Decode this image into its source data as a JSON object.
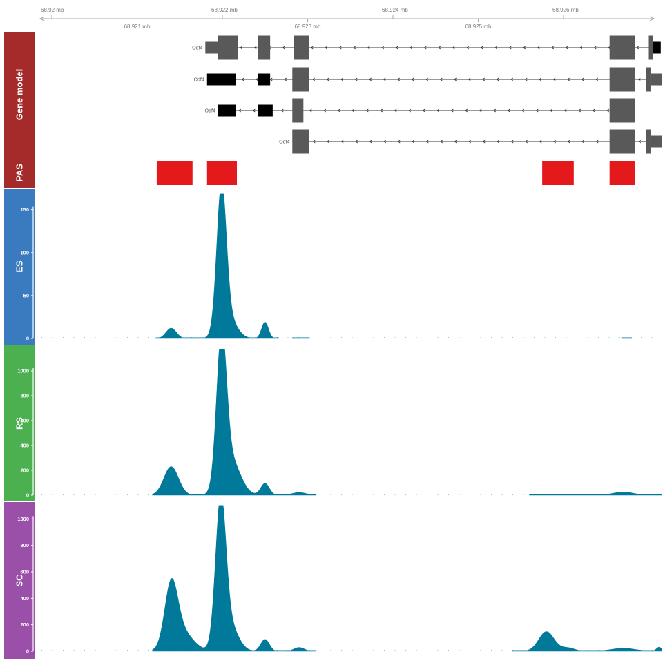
{
  "chart_data": {
    "type": "area",
    "genome_axis": {
      "unit": "mb",
      "range": [
        68.92,
        68.9275
      ],
      "tick_labels_top": [
        "68.92 mb",
        "68.922 mb",
        "68.924 mb",
        "68.926 mb"
      ],
      "tick_values_top": [
        68.92,
        68.922,
        68.924,
        68.926
      ],
      "tick_labels_bottom": [
        "68.921 mb",
        "68.923 mb",
        "68.925 mb"
      ],
      "tick_values_bottom": [
        68.921,
        68.923,
        68.925
      ]
    },
    "tracks": [
      {
        "id": "gene-model",
        "title": "Gene model",
        "color": "#a52a2a",
        "kind": "gene_model",
        "strand": "-",
        "transcripts": [
          {
            "label": "Odf4",
            "blocks": [
              {
                "start": 68.9218,
                "end": 68.92195,
                "kind": "utr"
              },
              {
                "start": 68.92195,
                "end": 68.92218,
                "kind": "coding"
              },
              {
                "start": 68.92242,
                "end": 68.92256,
                "kind": "coding"
              },
              {
                "start": 68.92284,
                "end": 68.92302,
                "kind": "coding"
              },
              {
                "start": 68.92654,
                "end": 68.92684,
                "kind": "coding"
              },
              {
                "start": 68.927,
                "end": 68.92705,
                "kind": "coding"
              },
              {
                "start": 68.92705,
                "end": 68.92714,
                "kind": "cds_black"
              }
            ]
          },
          {
            "label": "Odf4",
            "blocks": [
              {
                "start": 68.92182,
                "end": 68.92216,
                "kind": "cds_black"
              },
              {
                "start": 68.92242,
                "end": 68.92256,
                "kind": "cds_black"
              },
              {
                "start": 68.92282,
                "end": 68.92302,
                "kind": "coding"
              },
              {
                "start": 68.92654,
                "end": 68.92684,
                "kind": "coding"
              },
              {
                "start": 68.92697,
                "end": 68.92702,
                "kind": "coding"
              },
              {
                "start": 68.92702,
                "end": 68.92715,
                "kind": "utr"
              }
            ]
          },
          {
            "label": "Odf4",
            "blocks": [
              {
                "start": 68.92195,
                "end": 68.92216,
                "kind": "cds_black"
              },
              {
                "start": 68.92242,
                "end": 68.92259,
                "kind": "cds_black"
              },
              {
                "start": 68.92282,
                "end": 68.92295,
                "kind": "coding"
              },
              {
                "start": 68.92654,
                "end": 68.92684,
                "kind": "coding"
              }
            ]
          },
          {
            "label": "Odf4",
            "blocks": [
              {
                "start": 68.92282,
                "end": 68.92302,
                "kind": "coding"
              },
              {
                "start": 68.92654,
                "end": 68.92684,
                "kind": "coding"
              },
              {
                "start": 68.92697,
                "end": 68.92702,
                "kind": "coding"
              },
              {
                "start": 68.92702,
                "end": 68.92715,
                "kind": "utr"
              }
            ]
          }
        ]
      },
      {
        "id": "pas",
        "title": "PAS",
        "color": "#a52a2a",
        "kind": "intervals",
        "fill": "#e3191c",
        "intervals": [
          {
            "start": 68.92123,
            "end": 68.92165
          },
          {
            "start": 68.92182,
            "end": 68.92217
          },
          {
            "start": 68.92575,
            "end": 68.92612
          },
          {
            "start": 68.92654,
            "end": 68.92684
          }
        ]
      },
      {
        "id": "es",
        "title": "ES",
        "color": "#3a7bbf",
        "kind": "coverage",
        "fill": "#00799a",
        "ylim": [
          0,
          165
        ],
        "y_ticks": [
          0,
          50,
          100,
          150
        ],
        "peaks": [
          {
            "center": 68.9214,
            "height": 12,
            "sigma": 6e-05
          },
          {
            "center": 68.92199,
            "height": 163,
            "sigma": 5.5e-05
          },
          {
            "center": 68.92206,
            "height": 25,
            "sigma": 0.0001
          },
          {
            "center": 68.9225,
            "height": 19,
            "sigma": 4e-05
          }
        ],
        "support": [
          [
            68.92122,
            68.92266
          ],
          [
            68.92282,
            68.92302
          ],
          [
            68.92668,
            68.9268
          ]
        ]
      },
      {
        "id": "rs",
        "title": "RS",
        "color": "#4caf50",
        "kind": "coverage",
        "fill": "#00799a",
        "ylim": [
          0,
          1150
        ],
        "y_ticks": [
          0,
          200,
          400,
          600,
          800,
          1000
        ],
        "peaks": [
          {
            "center": 68.9214,
            "height": 230,
            "sigma": 8.5e-05
          },
          {
            "center": 68.92199,
            "height": 1170,
            "sigma": 5.8e-05
          },
          {
            "center": 68.9221,
            "height": 280,
            "sigma": 0.00011
          },
          {
            "center": 68.9225,
            "height": 95,
            "sigma": 5e-05
          },
          {
            "center": 68.9229,
            "height": 22,
            "sigma": 8e-05
          },
          {
            "center": 68.9258,
            "height": 8,
            "sigma": 0.0002
          },
          {
            "center": 68.9267,
            "height": 25,
            "sigma": 0.00012
          }
        ],
        "support": [
          [
            68.92118,
            68.9231
          ],
          [
            68.9256,
            68.92715
          ]
        ]
      },
      {
        "id": "sc",
        "title": "SC",
        "color": "#9a4fa8",
        "kind": "coverage",
        "fill": "#00799a",
        "ylim": [
          0,
          1080
        ],
        "y_ticks": [
          0,
          200,
          400,
          600,
          800,
          1000
        ],
        "peaks": [
          {
            "center": 68.9214,
            "height": 450,
            "sigma": 7.5e-05
          },
          {
            "center": 68.92152,
            "height": 150,
            "sigma": 0.00013
          },
          {
            "center": 68.92198,
            "height": 1070,
            "sigma": 6e-05
          },
          {
            "center": 68.92208,
            "height": 200,
            "sigma": 0.0001
          },
          {
            "center": 68.9225,
            "height": 90,
            "sigma": 5e-05
          },
          {
            "center": 68.9229,
            "height": 28,
            "sigma": 6e-05
          },
          {
            "center": 68.9258,
            "height": 148,
            "sigma": 9e-05
          },
          {
            "center": 68.92605,
            "height": 25,
            "sigma": 8e-05
          },
          {
            "center": 68.9267,
            "height": 22,
            "sigma": 0.00014
          },
          {
            "center": 68.92712,
            "height": 30,
            "sigma": 3e-05
          }
        ],
        "support": [
          [
            68.92118,
            68.9231
          ],
          [
            68.9254,
            68.92715
          ]
        ]
      }
    ]
  }
}
